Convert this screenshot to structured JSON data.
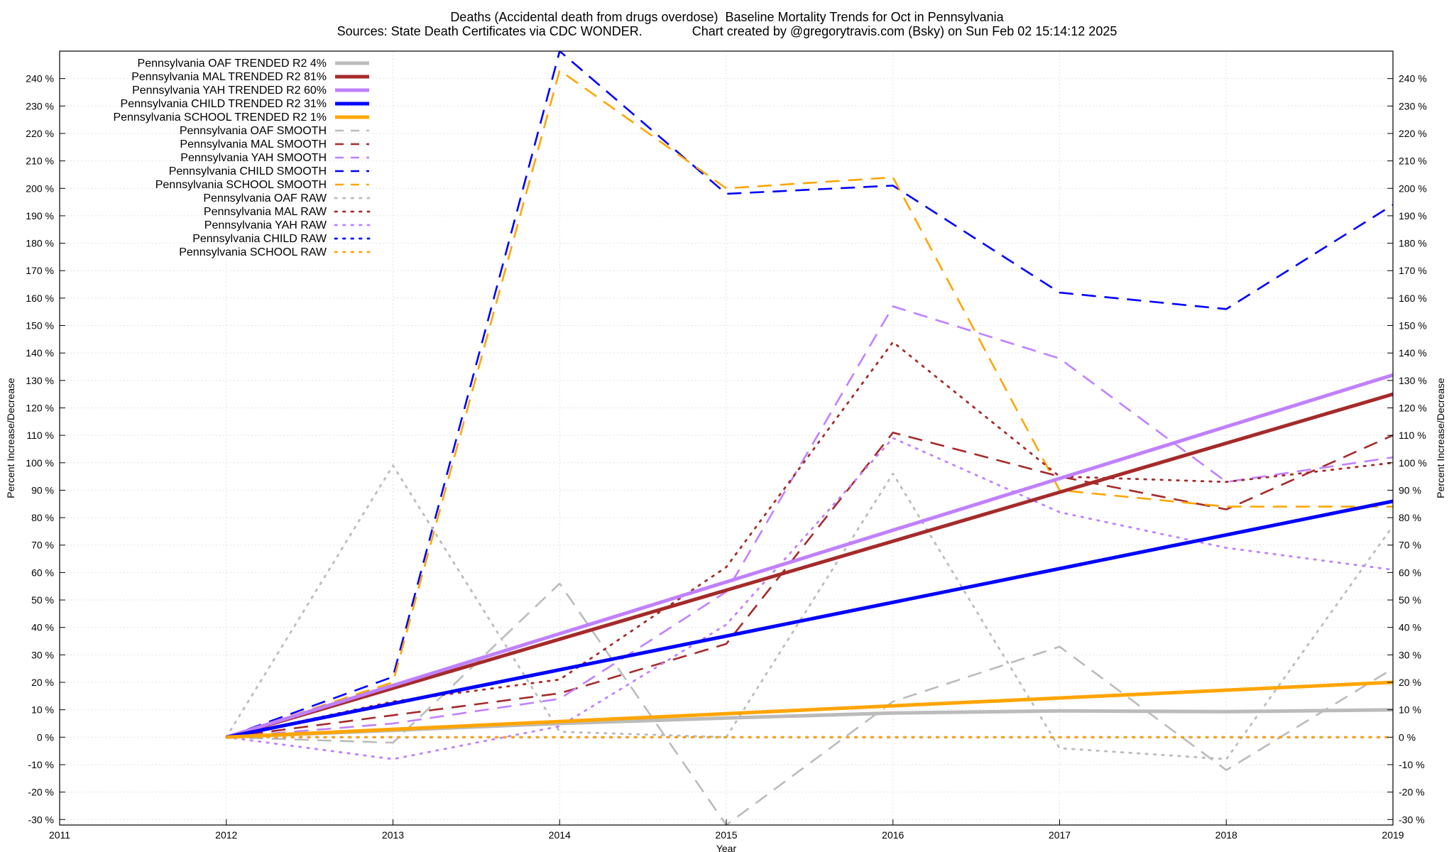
{
  "header": {
    "title_line1": "Deaths (Accidental death from drugs overdose)  Baseline Mortality Trends for Oct in Pennsylvania",
    "title_line2": "Sources: State Death Certificates via CDC WONDER.              Chart created by @gregorytravis.com (Bsky) on Sun Feb 02 15:14:12 2025"
  },
  "chart_data": {
    "type": "line",
    "title": "Deaths (Accidental death from drugs overdose)  Baseline Mortality Trends for Oct in Pennsylvania",
    "subtitle": "Sources: State Death Certificates via CDC WONDER.              Chart created by @gregorytravis.com (Bsky) on Sun Feb 02 15:14:12 2025",
    "xlabel": "Year",
    "ylabel": "Percent Increase/Decrease",
    "y2label": "Percent Increase/Decrease",
    "xlim": [
      2011,
      2019
    ],
    "ylim": [
      -32,
      250
    ],
    "xticks": [
      2011,
      2012,
      2013,
      2014,
      2015,
      2016,
      2017,
      2018,
      2019
    ],
    "yticks": [
      -30,
      -20,
      -10,
      0,
      10,
      20,
      30,
      40,
      50,
      60,
      70,
      80,
      90,
      100,
      110,
      120,
      130,
      140,
      150,
      160,
      170,
      180,
      190,
      200,
      210,
      220,
      230,
      240
    ],
    "ytick_suffix": " %",
    "grid": true,
    "legend_position": "top-left",
    "series": [
      {
        "name": "Pennsylvania OAF TRENDED R2   4%",
        "color": "#bbbbbb",
        "style": "solid",
        "x": [
          2012,
          2013,
          2014,
          2015,
          2016,
          2017,
          2018,
          2019
        ],
        "values": [
          0,
          2.5,
          5,
          7,
          8.8,
          9.6,
          9.3,
          10
        ]
      },
      {
        "name": "Pennsylvania MAL TRENDED R2  81%",
        "color": "#a52a2a",
        "style": "solid",
        "x": [
          2012,
          2019
        ],
        "values": [
          0,
          125
        ]
      },
      {
        "name": "Pennsylvania YAH TRENDED R2  60%",
        "color": "#c080ff",
        "style": "solid",
        "x": [
          2012,
          2019
        ],
        "values": [
          0,
          132
        ]
      },
      {
        "name": "Pennsylvania CHILD TRENDED R2  31%",
        "color": "#0000ff",
        "style": "solid",
        "x": [
          2012,
          2019
        ],
        "values": [
          0,
          86
        ]
      },
      {
        "name": "Pennsylvania SCHOOL TRENDED R2   1%",
        "color": "#ffa500",
        "style": "solid",
        "x": [
          2012,
          2019
        ],
        "values": [
          0,
          20
        ]
      },
      {
        "name": "Pennsylvania OAF SMOOTH",
        "color": "#bbbbbb",
        "style": "dashed",
        "x": [
          2012,
          2013,
          2014,
          2015,
          2016,
          2017,
          2018,
          2019
        ],
        "values": [
          0,
          -2,
          56,
          -32,
          13,
          33,
          -12,
          25
        ]
      },
      {
        "name": "Pennsylvania MAL SMOOTH",
        "color": "#a52a2a",
        "style": "dashed",
        "x": [
          2012,
          2013,
          2014,
          2015,
          2016,
          2017,
          2018,
          2019
        ],
        "values": [
          0,
          8,
          16,
          34,
          111,
          95,
          83,
          110
        ]
      },
      {
        "name": "Pennsylvania YAH SMOOTH",
        "color": "#c080ff",
        "style": "dashed",
        "x": [
          2012,
          2013,
          2014,
          2015,
          2016,
          2017,
          2018,
          2019
        ],
        "values": [
          0,
          5,
          14,
          53,
          157,
          138,
          93,
          102
        ]
      },
      {
        "name": "Pennsylvania CHILD SMOOTH",
        "color": "#0000ff",
        "style": "dashed",
        "x": [
          2012,
          2013,
          2014,
          2015,
          2016,
          2017,
          2018,
          2019
        ],
        "values": [
          0,
          22,
          250,
          198,
          201,
          162,
          156,
          194
        ]
      },
      {
        "name": "Pennsylvania SCHOOL SMOOTH",
        "color": "#ffa500",
        "style": "dashed",
        "x": [
          2012,
          2013,
          2014,
          2015,
          2016,
          2017,
          2018,
          2019
        ],
        "values": [
          0,
          20,
          243,
          200,
          204,
          90,
          84,
          84
        ]
      },
      {
        "name": "Pennsylvania OAF RAW",
        "color": "#bbbbbb",
        "style": "dotted",
        "x": [
          2012,
          2013,
          2014,
          2015,
          2016,
          2017,
          2018,
          2019
        ],
        "values": [
          0,
          99,
          2,
          0,
          96,
          -4,
          -8,
          77
        ]
      },
      {
        "name": "Pennsylvania MAL RAW",
        "color": "#a52a2a",
        "style": "dotted",
        "x": [
          2012,
          2013,
          2014,
          2015,
          2016,
          2017,
          2018,
          2019
        ],
        "values": [
          0,
          13,
          21,
          62,
          144,
          95,
          93,
          100
        ]
      },
      {
        "name": "Pennsylvania YAH RAW",
        "color": "#c080ff",
        "style": "dotted",
        "x": [
          2012,
          2013,
          2014,
          2015,
          2016,
          2017,
          2018,
          2019
        ],
        "values": [
          0,
          -8,
          4,
          41,
          109,
          82,
          69,
          61
        ]
      },
      {
        "name": "Pennsylvania CHILD RAW",
        "color": "#0000ff",
        "style": "dotted",
        "x": [
          2012,
          2013,
          2014,
          2015,
          2016,
          2017,
          2018,
          2019
        ],
        "values": [
          0,
          0,
          0,
          0,
          0,
          0,
          0,
          0
        ]
      },
      {
        "name": "Pennsylvania SCHOOL RAW",
        "color": "#ffa500",
        "style": "dotted",
        "x": [
          2012,
          2019
        ],
        "values": [
          0,
          0
        ]
      }
    ]
  }
}
